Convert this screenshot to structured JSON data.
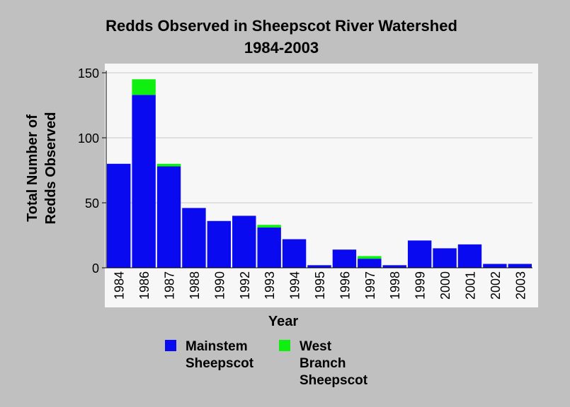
{
  "chart_data": {
    "type": "bar",
    "stacked": true,
    "title": "Redds Observed in Sheepscot River Watershed",
    "subtitle": "1984-2003",
    "xlabel": "Year",
    "ylabel": "Total Number of Redds Observed",
    "ylabel_lines": [
      "Total Number of",
      "Redds Observed"
    ],
    "ylim": [
      0,
      150
    ],
    "yticks": [
      0,
      50,
      100,
      150
    ],
    "grid": true,
    "legend_position": "bottom",
    "categories": [
      "1984",
      "1986",
      "1987",
      "1988",
      "1990",
      "1992",
      "1993",
      "1994",
      "1995",
      "1996",
      "1997",
      "1998",
      "1999",
      "2000",
      "2001",
      "2002",
      "2003"
    ],
    "series": [
      {
        "name": "Mainstem Sheepscot",
        "label_lines": [
          "Mainstem",
          "Sheepscot"
        ],
        "color": "#0a0af0",
        "values": [
          80,
          133,
          78,
          46,
          36,
          40,
          31,
          22,
          2,
          14,
          7,
          2,
          21,
          15,
          18,
          3,
          3
        ]
      },
      {
        "name": "West Branch Sheepscot",
        "label_lines": [
          "West",
          "Branch",
          "Sheepscot"
        ],
        "color": "#10f010",
        "values": [
          0,
          12,
          2,
          0,
          0,
          0,
          2,
          0,
          0,
          0,
          2,
          0,
          0,
          0,
          0,
          0,
          0
        ]
      }
    ]
  }
}
